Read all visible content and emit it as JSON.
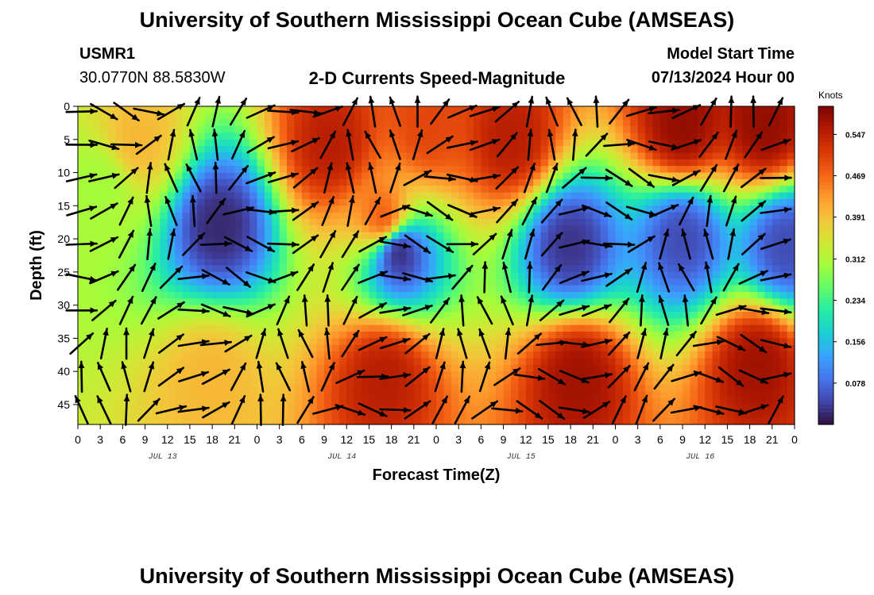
{
  "header": {
    "title": "University of Southern Mississippi Ocean Cube (AMSEAS)",
    "station": "USMR1",
    "coords": "30.0770N  88.5830W",
    "chart_heading": "2-D Currents Speed-Magnitude",
    "start_label": "Model Start Time",
    "start_value": "07/13/2024 Hour 00"
  },
  "footer": {
    "title": "University of Southern Mississippi Ocean Cube (AMSEAS)"
  },
  "colorbar": {
    "unit": "Knots",
    "ticks": [
      "0.547",
      "0.469",
      "0.391",
      "0.312",
      "0.234",
      "0.156",
      "0.078"
    ],
    "stops": [
      "#30123b",
      "#4145ab",
      "#4675ed",
      "#39a2fc",
      "#1bcfd4",
      "#24eca6",
      "#61fc6c",
      "#a4fc3b",
      "#d1e834",
      "#f3c63a",
      "#fe9b2d",
      "#f36315",
      "#d93806",
      "#b11901",
      "#7a0402"
    ]
  },
  "chart_data": {
    "type": "heatmap",
    "title": "2-D Currents Speed-Magnitude",
    "xlabel": "Forecast Time(Z)",
    "ylabel": "Depth (ft)",
    "x_range_hours": [
      0,
      96
    ],
    "x_ticks": [
      "0",
      "3",
      "6",
      "9",
      "12",
      "15",
      "18",
      "21",
      "0",
      "3",
      "6",
      "9",
      "12",
      "15",
      "18",
      "21",
      "0",
      "3",
      "6",
      "9",
      "12",
      "15",
      "18",
      "21",
      "0",
      "3",
      "6",
      "9",
      "12",
      "15",
      "18",
      "21",
      "0"
    ],
    "day_labels": [
      {
        "hour": 12,
        "label": "JUL 13"
      },
      {
        "hour": 36,
        "label": "JUL 14"
      },
      {
        "hour": 60,
        "label": "JUL 15"
      },
      {
        "hour": 84,
        "label": "JUL 16"
      }
    ],
    "y_range_ft": [
      0,
      48
    ],
    "y_ticks": [
      0,
      5,
      10,
      15,
      20,
      25,
      30,
      35,
      40,
      45
    ],
    "value_range_knots": [
      0.0,
      0.6
    ],
    "value_unit": "Knots",
    "speed_features": [
      {
        "hour": 3,
        "depth": 12,
        "value": 0.3
      },
      {
        "hour": 8,
        "depth": 5,
        "value": 0.4
      },
      {
        "hour": 19,
        "depth": 18,
        "value": 0.02
      },
      {
        "hour": 18,
        "depth": 41,
        "value": 0.4
      },
      {
        "hour": 34,
        "depth": 6,
        "value": 0.55
      },
      {
        "hour": 41,
        "depth": 17,
        "value": 0.48
      },
      {
        "hour": 43,
        "depth": 22,
        "value": 0.02
      },
      {
        "hour": 41,
        "depth": 41,
        "value": 0.55
      },
      {
        "hour": 47,
        "depth": 3,
        "value": 0.5
      },
      {
        "hour": 58,
        "depth": 5,
        "value": 0.55
      },
      {
        "hour": 66,
        "depth": 21,
        "value": 0.03
      },
      {
        "hour": 67,
        "depth": 41,
        "value": 0.57
      },
      {
        "hour": 81,
        "depth": 3,
        "value": 0.58
      },
      {
        "hour": 81,
        "depth": 20,
        "value": 0.05
      },
      {
        "hour": 91,
        "depth": 39,
        "value": 0.57
      },
      {
        "hour": 92,
        "depth": 3,
        "value": 0.58
      },
      {
        "hour": 95,
        "depth": 21,
        "value": 0.05
      }
    ]
  }
}
